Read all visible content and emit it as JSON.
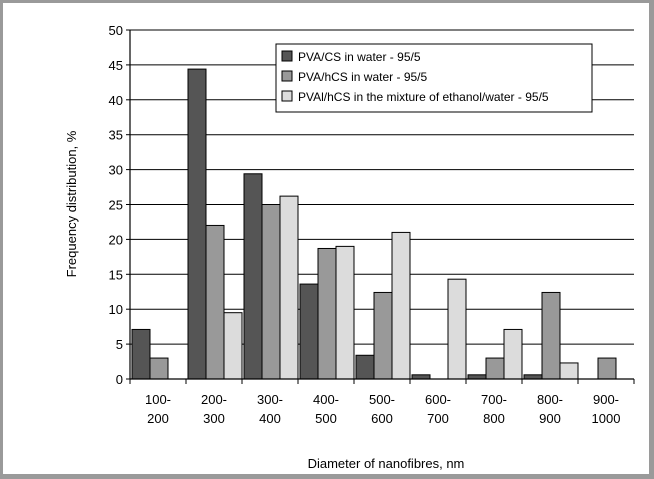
{
  "chart_data": {
    "type": "bar",
    "categories": [
      [
        "100-",
        "200"
      ],
      [
        "200-",
        "300"
      ],
      [
        "300-",
        "400"
      ],
      [
        "400-",
        "500"
      ],
      [
        "500-",
        "600"
      ],
      [
        "600-",
        "700"
      ],
      [
        "700-",
        "800"
      ],
      [
        "800-",
        "900"
      ],
      [
        "900-",
        "1000"
      ]
    ],
    "series": [
      {
        "name": "PVA/CS in water - 95/5",
        "color": "#555555",
        "values": [
          7.1,
          44.4,
          29.4,
          13.6,
          3.4,
          0.6,
          0.6,
          0.6,
          0
        ]
      },
      {
        "name": "PVA/hCS in water - 95/5",
        "color": "#999999",
        "values": [
          3.0,
          22.0,
          25.0,
          18.7,
          12.4,
          0,
          3.0,
          12.4,
          3.0
        ]
      },
      {
        "name": "PVAl/hCS in  the mixture of ethanol/water - 95/5",
        "color": "#dcdcdc",
        "values": [
          0,
          9.5,
          26.2,
          19.0,
          21.0,
          14.3,
          7.1,
          2.3,
          0
        ]
      }
    ],
    "ylim": [
      0,
      50
    ],
    "yticks": [
      0,
      5,
      10,
      15,
      20,
      25,
      30,
      35,
      40,
      45,
      50
    ],
    "xlabel": "Diameter of nanofibres, nm",
    "ylabel": "Frequency distribution, %",
    "grid": true,
    "legend_position": "top-right"
  }
}
